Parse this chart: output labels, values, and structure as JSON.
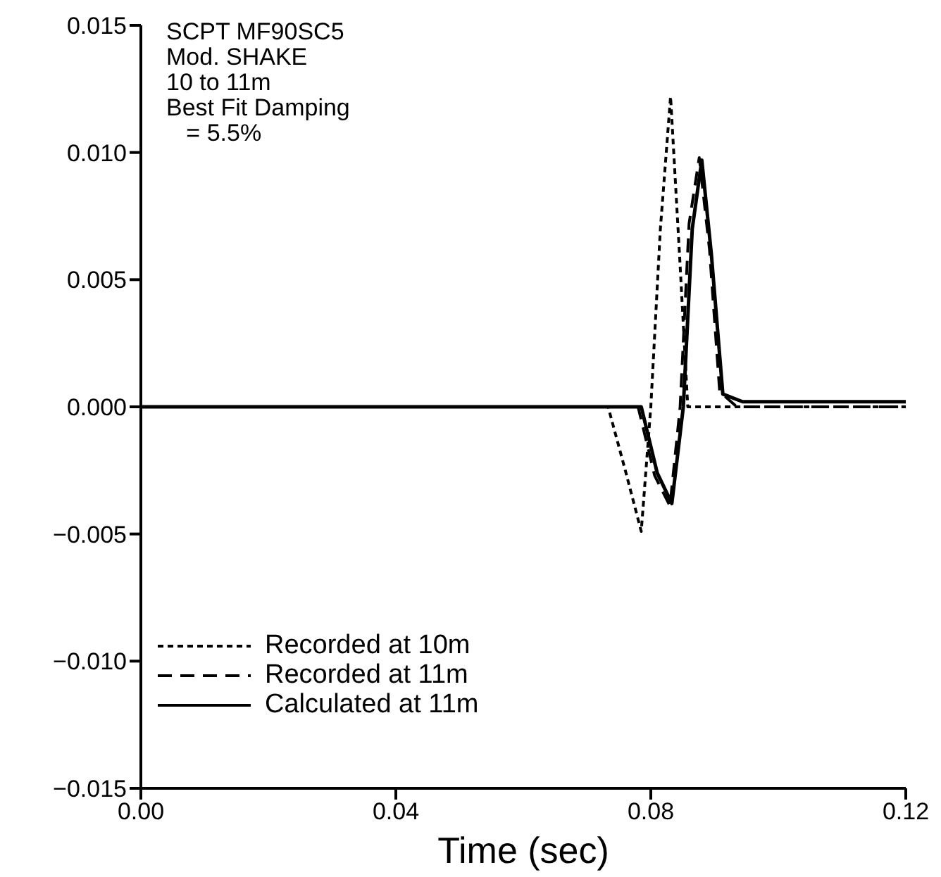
{
  "chart_data": {
    "type": "line",
    "xlabel": "Time (sec)",
    "annotations": [
      "SCPT MF90SC5",
      "Mod. SHAKE",
      "10 to 11m",
      "Best Fit Damping",
      "   = 5.5%"
    ],
    "xlim": [
      0,
      0.12
    ],
    "xticks": [
      {
        "value": 0,
        "label": "0.00"
      },
      {
        "value": 0.04,
        "label": "0.04"
      },
      {
        "value": 0.08,
        "label": "0.08"
      },
      {
        "value": 0.12,
        "label": "0.12"
      }
    ],
    "ylim": [
      -0.015,
      0.015
    ],
    "yticks": [
      {
        "value": -0.015,
        "label": "−0.015"
      },
      {
        "value": -0.01,
        "label": "−0.010"
      },
      {
        "value": -0.005,
        "label": "−0.005"
      },
      {
        "value": 0,
        "label": "0.000"
      },
      {
        "value": 0.005,
        "label": "0.005"
      },
      {
        "value": 0.01,
        "label": "0.010"
      },
      {
        "value": 0.015,
        "label": "0.015"
      }
    ],
    "grid": false,
    "legend": "bottom left",
    "marker": "none",
    "series": [
      {
        "name": "Recorded at 10m",
        "color": "#000000",
        "line_style": "dotted",
        "x": [
          0,
          0.0733,
          0.076,
          0.0785,
          0.08,
          0.0815,
          0.0831,
          0.0845,
          0.0858,
          0.087,
          0.12
        ],
        "values": [
          0,
          0,
          -0.0025,
          -0.0049,
          0,
          0.007,
          0.0122,
          0.006,
          0,
          0,
          0
        ]
      },
      {
        "name": "Recorded at 11m",
        "color": "#000000",
        "line_style": "dashed",
        "x": [
          0,
          0.078,
          0.0806,
          0.083,
          0.0846,
          0.086,
          0.0876,
          0.0892,
          0.0908,
          0.0935,
          0.12
        ],
        "values": [
          0,
          0,
          -0.0027,
          -0.0039,
          0,
          0.0072,
          0.0098,
          0.0062,
          0.0006,
          0,
          0
        ]
      },
      {
        "name": "Calculated at 11m",
        "color": "#000000",
        "line_style": "solid",
        "x": [
          0,
          0.0785,
          0.081,
          0.0833,
          0.0851,
          0.0865,
          0.088,
          0.0895,
          0.0913,
          0.0944,
          0.12
        ],
        "values": [
          0,
          0,
          -0.0026,
          -0.0038,
          0,
          0.007,
          0.0097,
          0.006,
          0.0005,
          0.0002,
          0.0002
        ]
      }
    ]
  }
}
